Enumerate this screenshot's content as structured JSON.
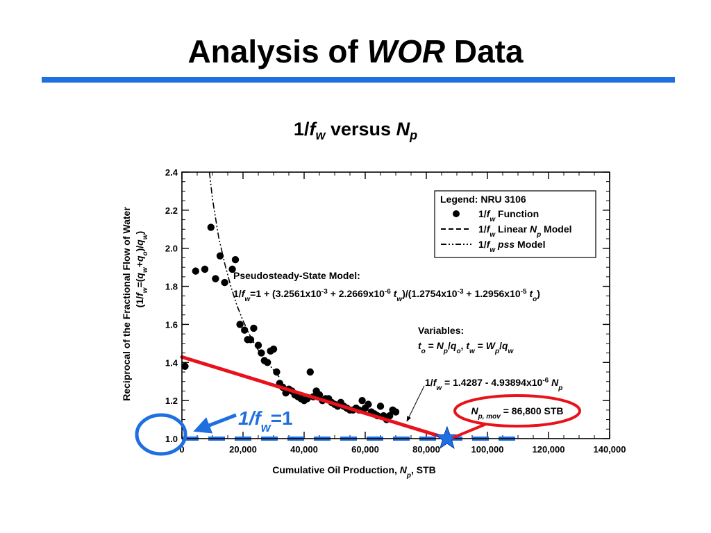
{
  "slide": {
    "title_pre": "Analysis of",
    "title_em": "WOR",
    "title_post": "Data",
    "rule_color": "#1f6fe0"
  },
  "subtitle": {
    "pre": "1/",
    "f": "f",
    "f_sub": "w",
    "mid": "versus",
    "N": "N",
    "N_sub": "p"
  },
  "chart_data": {
    "type": "scatter",
    "x_axis": {
      "label_pre": "Cumulative Oil Production, ",
      "label_var": "N",
      "label_sub": "p",
      "label_post": ", STB",
      "range": [
        0,
        140000
      ],
      "ticks": [
        0,
        20000,
        40000,
        60000,
        80000,
        100000,
        120000,
        140000
      ],
      "tick_labels": [
        "0",
        "20,000",
        "40,000",
        "60,000",
        "80,000",
        "100,000",
        "120,000",
        "140,000"
      ],
      "minor_step": 5000
    },
    "y_axis": {
      "label_line1": "Reciprocal of the Fractional Flow of Water",
      "label_line2": "(1/f_w=(q_w+q_o)/q_w)",
      "range": [
        1.0,
        2.4
      ],
      "ticks": [
        1.0,
        1.2,
        1.4,
        1.6,
        1.8,
        2.0,
        2.2,
        2.4
      ],
      "tick_labels": [
        "1.0",
        "1.2",
        "1.4",
        "1.6",
        "1.8",
        "2.0",
        "2.2",
        "2.4"
      ],
      "minor_step": 0.05
    },
    "grid": false,
    "legend": {
      "position": "top-right",
      "title": "Legend: NRU 3106",
      "entries": [
        {
          "marker": "dot",
          "text": "1/f_w Function"
        },
        {
          "marker": "dashed",
          "text": "1/f_w Linear N_p Model"
        },
        {
          "marker": "dashdotdot",
          "text": "1/f_w pss Model"
        }
      ]
    },
    "series": [
      {
        "name": "1/f_w Function",
        "marker": "dot",
        "points": [
          [
            1000,
            1.38
          ],
          [
            4500,
            1.88
          ],
          [
            7500,
            1.89
          ],
          [
            9500,
            2.11
          ],
          [
            11000,
            1.84
          ],
          [
            12500,
            1.96
          ],
          [
            14000,
            1.82
          ],
          [
            16500,
            1.89
          ],
          [
            17500,
            1.94
          ],
          [
            19000,
            1.6
          ],
          [
            20500,
            1.57
          ],
          [
            21500,
            1.52
          ],
          [
            22500,
            1.52
          ],
          [
            23500,
            1.58
          ],
          [
            25000,
            1.49
          ],
          [
            26000,
            1.45
          ],
          [
            27000,
            1.41
          ],
          [
            28000,
            1.4
          ],
          [
            29000,
            1.46
          ],
          [
            30000,
            1.47
          ],
          [
            31000,
            1.35
          ],
          [
            32000,
            1.29
          ],
          [
            33000,
            1.27
          ],
          [
            34000,
            1.24
          ],
          [
            35000,
            1.26
          ],
          [
            36000,
            1.25
          ],
          [
            37000,
            1.23
          ],
          [
            38000,
            1.22
          ],
          [
            39000,
            1.21
          ],
          [
            40000,
            1.2
          ],
          [
            41000,
            1.21
          ],
          [
            42000,
            1.35
          ],
          [
            43000,
            1.22
          ],
          [
            44000,
            1.25
          ],
          [
            45000,
            1.23
          ],
          [
            46000,
            1.2
          ],
          [
            47000,
            1.21
          ],
          [
            48000,
            1.21
          ],
          [
            49000,
            1.19
          ],
          [
            50000,
            1.18
          ],
          [
            51000,
            1.17
          ],
          [
            52000,
            1.19
          ],
          [
            53000,
            1.17
          ],
          [
            54000,
            1.16
          ],
          [
            55000,
            1.15
          ],
          [
            56000,
            1.15
          ],
          [
            57000,
            1.16
          ],
          [
            58000,
            1.15
          ],
          [
            59000,
            1.2
          ],
          [
            60000,
            1.16
          ],
          [
            61000,
            1.18
          ],
          [
            62000,
            1.14
          ],
          [
            63000,
            1.13
          ],
          [
            64000,
            1.12
          ],
          [
            65000,
            1.17
          ],
          [
            66000,
            1.12
          ],
          [
            67000,
            1.1
          ],
          [
            68000,
            1.12
          ],
          [
            69000,
            1.15
          ],
          [
            70000,
            1.14
          ]
        ]
      },
      {
        "name": "1/f_w Linear N_p Model",
        "line": "dashed",
        "color": "#1f6fe0",
        "x": [
          0,
          110000
        ],
        "y": [
          1.0,
          1.0
        ]
      },
      {
        "name": "1/f_w pss Model",
        "line": "dashdotdot",
        "x": [
          9000,
          10000,
          12000,
          14000,
          16000,
          18000,
          20000,
          22000,
          24000,
          26000,
          28000,
          30000,
          32000
        ],
        "y": [
          2.4,
          2.26,
          2.06,
          1.92,
          1.8,
          1.7,
          1.62,
          1.55,
          1.49,
          1.44,
          1.4,
          1.36,
          1.32
        ]
      }
    ],
    "linear_fit": {
      "color": "#e8121b",
      "x": [
        0,
        87000
      ],
      "y": [
        1.4287,
        1.0
      ]
    },
    "highlight": {
      "color": "#1f6fe0",
      "intercept_x": 86800,
      "intercept_y": 1.0,
      "oval_color": "#e8121b"
    },
    "annotations": {
      "pss_title": "Pseudosteady-State Model:",
      "pss_equation": "1/f_w=1 + (3.2561x10^-3 + 2.2669x10^-6 t_w)/(1.2754x10^-3 + 1.2956x10^-5 t_o)",
      "variables_title": "Variables:",
      "variables_line": "t_o = N_p/q_o,   t_w = W_p/q_w",
      "linear_eq": "1/f_w = 1.4287 - 4.93894x10^-6 N_p",
      "npmov": "N_p, mov = 86,800 STB",
      "fw1": "1/f_w=1"
    }
  }
}
